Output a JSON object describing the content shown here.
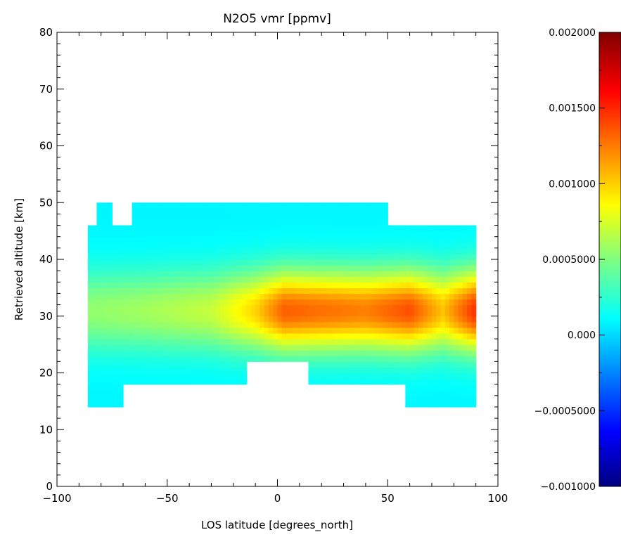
{
  "chart_data": {
    "type": "heatmap",
    "title": "N2O5 vmr [ppmv]",
    "xlabel": "LOS latitude [degrees_north]",
    "ylabel": "Retrieved altitude [km]",
    "xlim": [
      -100,
      100
    ],
    "ylim": [
      0,
      80
    ],
    "x_ticks": [
      -100,
      -50,
      0,
      50,
      100
    ],
    "x_tick_labels": [
      "−100",
      "−50",
      "0",
      "50",
      "100"
    ],
    "y_ticks": [
      0,
      10,
      20,
      30,
      40,
      50,
      60,
      70,
      80
    ],
    "y_tick_labels": [
      "0",
      "10",
      "20",
      "30",
      "40",
      "50",
      "60",
      "70",
      "80"
    ],
    "colorbar": {
      "colormap": "rainbow (dark blue to dark red)",
      "range": [
        -0.001,
        0.002
      ],
      "ticks": [
        -0.001,
        -0.0005,
        0,
        0.0005,
        0.001,
        0.0015,
        0.002
      ],
      "tick_labels": [
        "−0.001000",
        "−0.0005000",
        "0.000",
        "0.0005000",
        "0.001000",
        "0.001500",
        "0.002000"
      ]
    },
    "data_coverage": [
      {
        "lat_range": [
          -86,
          -70
        ],
        "alt_range": [
          14,
          46
        ]
      },
      {
        "lat_range": [
          -82,
          -75
        ],
        "alt_range": [
          46,
          50
        ]
      },
      {
        "lat_range": [
          -70,
          -66
        ],
        "alt_range": [
          18,
          46
        ]
      },
      {
        "lat_range": [
          -66,
          -14
        ],
        "alt_range": [
          18,
          50
        ]
      },
      {
        "lat_range": [
          -14,
          14
        ],
        "alt_range": [
          22,
          50
        ]
      },
      {
        "lat_range": [
          14,
          50
        ],
        "alt_range": [
          18,
          50
        ]
      },
      {
        "lat_range": [
          50,
          58
        ],
        "alt_range": [
          18,
          46
        ]
      },
      {
        "lat_range": [
          58,
          90
        ],
        "alt_range": [
          14,
          46
        ]
      }
    ],
    "value_pattern": {
      "background_vmr": 0.0001,
      "peak_altitude_km": 31,
      "layer_half_width_km": 7,
      "peak_vmr_by_latitude": [
        {
          "lat": -86,
          "vmr": 0.00055
        },
        {
          "lat": -60,
          "vmr": 0.0006
        },
        {
          "lat": -30,
          "vmr": 0.0007
        },
        {
          "lat": -10,
          "vmr": 0.001
        },
        {
          "lat": 3,
          "vmr": 0.00135
        },
        {
          "lat": 20,
          "vmr": 0.0013
        },
        {
          "lat": 40,
          "vmr": 0.00125
        },
        {
          "lat": 60,
          "vmr": 0.0014
        },
        {
          "lat": 75,
          "vmr": 0.00105
        },
        {
          "lat": 90,
          "vmr": 0.0015
        }
      ]
    }
  }
}
